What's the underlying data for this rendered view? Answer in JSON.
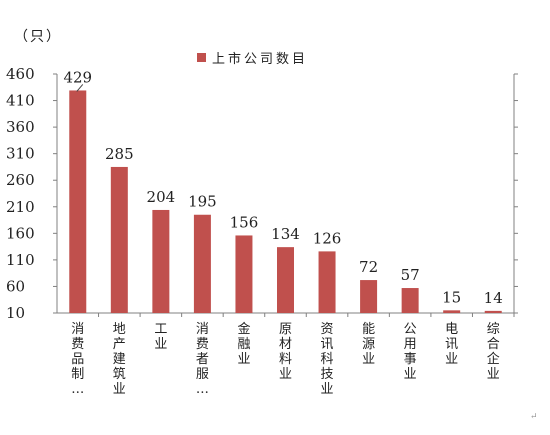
{
  "chart_data": {
    "type": "bar",
    "unit_label": "（只）",
    "series": [
      {
        "name": "上市公司数目",
        "color": "#c0504d",
        "values": [
          429,
          285,
          204,
          195,
          156,
          134,
          126,
          72,
          57,
          15,
          14
        ]
      }
    ],
    "categories": [
      "消费品制…",
      "地产建筑业",
      "工业",
      "消费者服…",
      "金融业",
      "原材料业",
      "资讯科技业",
      "能源业",
      "公用事业",
      "电讯业",
      "综合企业"
    ],
    "data_labels": [
      "429",
      "285",
      "204",
      "195",
      "156",
      "134",
      "126",
      "72",
      "57",
      "15",
      "14"
    ],
    "y_ticks": [
      "460",
      "410",
      "360",
      "310",
      "260",
      "210",
      "160",
      "110",
      "60",
      "10"
    ],
    "ylim": [
      10,
      460
    ],
    "grid": false,
    "legend_position": "top-center"
  },
  "footer": {
    "return_mark": "↵"
  }
}
